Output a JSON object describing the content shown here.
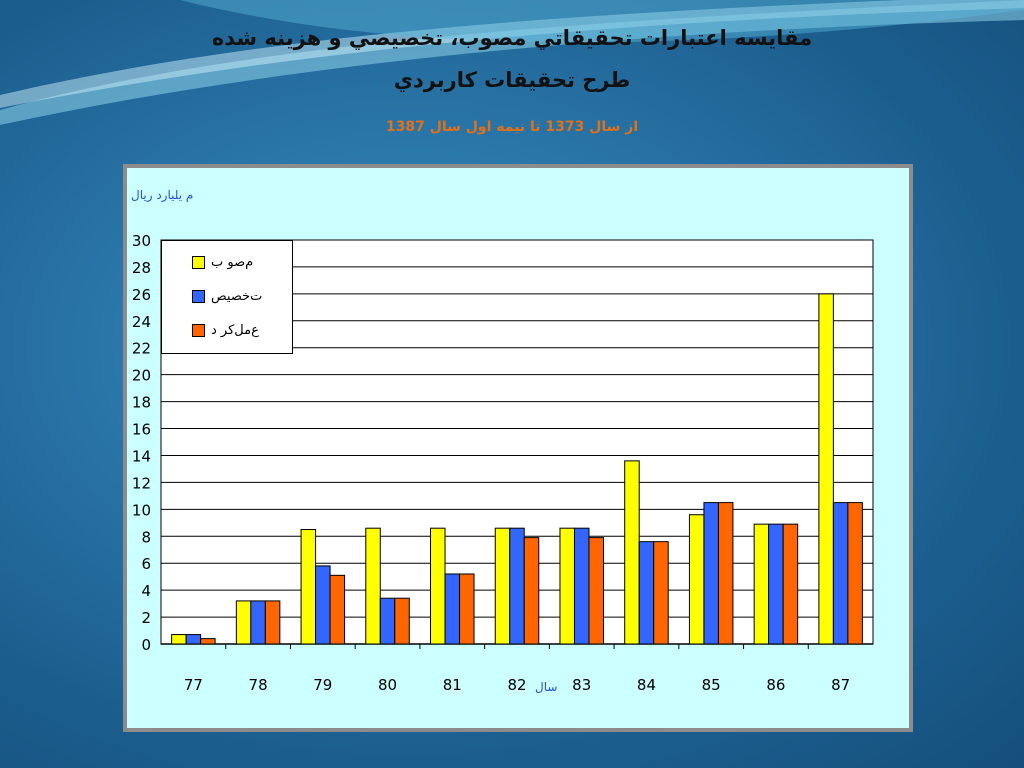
{
  "slide": {
    "title_line1": "مقايسه اعتبارات تحقيقاتي مصوب، تخصيصي و هزينه شده",
    "title_line2": "طرح تحقيقات كاربردي",
    "subtitle": "از سال 1373 تا نيمه اول سال 1387"
  },
  "chart_data": {
    "type": "bar",
    "unit_label": "م یلیارد   ریال",
    "xlabel": "سال",
    "categories": [
      "77",
      "78",
      "79",
      "80",
      "81",
      "82",
      "83",
      "84",
      "85",
      "86",
      "87"
    ],
    "ylim": [
      0,
      30
    ],
    "yticks": [
      0,
      2,
      4,
      6,
      8,
      10,
      12,
      14,
      16,
      18,
      20,
      22,
      24,
      26,
      28,
      30
    ],
    "grid": true,
    "legend_position": "top-left",
    "series": [
      {
        "name": "م‌صو ب",
        "color": "#ffff00",
        "values": [
          0.7,
          3.2,
          8.5,
          8.6,
          8.6,
          8.6,
          8.6,
          13.6,
          9.6,
          8.9,
          26.0
        ]
      },
      {
        "name": "ت‌خصیص",
        "color": "#3366ff",
        "values": [
          0.7,
          3.2,
          5.8,
          3.4,
          5.2,
          8.6,
          8.6,
          7.6,
          10.5,
          8.9,
          10.5
        ]
      },
      {
        "name": "ع‌مل‌کر د",
        "color": "#ff6600",
        "values": [
          0.4,
          3.2,
          5.1,
          3.4,
          5.2,
          7.9,
          7.9,
          7.6,
          10.5,
          8.9,
          10.5
        ]
      }
    ]
  }
}
